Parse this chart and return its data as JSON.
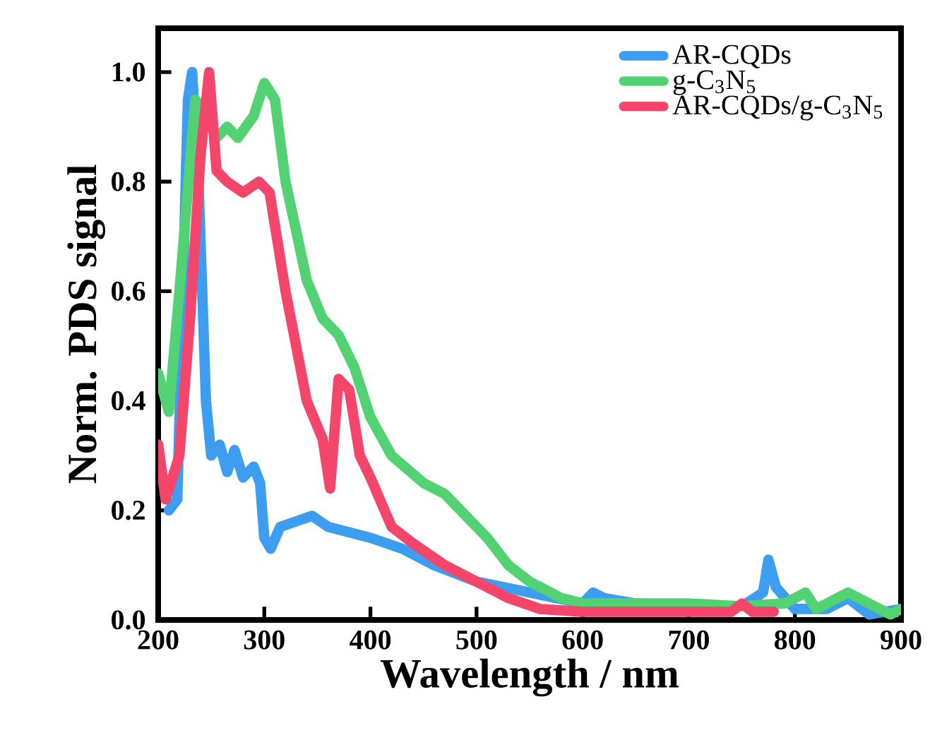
{
  "chart_data": {
    "type": "line",
    "xlabel": "Wavelength / nm",
    "ylabel": "Norm. PDS signal",
    "xlim": [
      200,
      900
    ],
    "ylim": [
      0,
      1.08
    ],
    "xticks": [
      200,
      300,
      400,
      500,
      600,
      700,
      800,
      900
    ],
    "yticks": [
      {
        "value": 0,
        "label": "0.0"
      },
      {
        "value": 0.2,
        "label": "0.2"
      },
      {
        "value": 0.4,
        "label": "0.4"
      },
      {
        "value": 0.6,
        "label": "0.6"
      },
      {
        "value": 0.8,
        "label": "0.8"
      },
      {
        "value": 1.0,
        "label": "1.0"
      }
    ],
    "legend": "top right",
    "grid": false,
    "marker": "none",
    "line_style": "solid",
    "series": [
      {
        "name": "AR-CQDs",
        "color": "#3d9df0",
        "x": [
          210,
          218,
          228,
          232,
          238,
          245,
          250,
          258,
          265,
          272,
          280,
          290,
          296,
          300,
          306,
          315,
          330,
          345,
          360,
          380,
          400,
          430,
          460,
          500,
          550,
          600,
          610,
          620,
          650,
          700,
          750,
          770,
          775,
          782,
          800,
          830,
          850,
          870,
          900
        ],
        "values": [
          0.2,
          0.22,
          0.95,
          1.0,
          0.8,
          0.4,
          0.3,
          0.32,
          0.27,
          0.31,
          0.26,
          0.28,
          0.25,
          0.15,
          0.13,
          0.17,
          0.18,
          0.19,
          0.17,
          0.16,
          0.15,
          0.13,
          0.1,
          0.07,
          0.05,
          0.03,
          0.05,
          0.04,
          0.03,
          0.025,
          0.025,
          0.05,
          0.11,
          0.06,
          0.02,
          0.02,
          0.04,
          0.01,
          0.02
        ]
      },
      {
        "name": "g-C$_{3}$N$_{5}$",
        "color": "#52d273",
        "x": [
          200,
          210,
          220,
          235,
          245,
          255,
          265,
          275,
          290,
          300,
          310,
          320,
          340,
          355,
          370,
          385,
          400,
          420,
          450,
          470,
          490,
          510,
          530,
          550,
          580,
          600,
          650,
          700,
          750,
          790,
          810,
          820,
          850,
          870,
          890,
          900
        ],
        "values": [
          0.45,
          0.38,
          0.6,
          0.95,
          0.92,
          0.88,
          0.9,
          0.88,
          0.92,
          0.98,
          0.95,
          0.8,
          0.62,
          0.55,
          0.52,
          0.46,
          0.37,
          0.3,
          0.25,
          0.23,
          0.19,
          0.15,
          0.1,
          0.07,
          0.04,
          0.03,
          0.03,
          0.03,
          0.025,
          0.03,
          0.05,
          0.02,
          0.05,
          0.03,
          0.01,
          0.02
        ]
      },
      {
        "name": "AR-CQDs/g-C$_{3}$N$_{5}$",
        "color": "#f4466a",
        "x": [
          200,
          207,
          220,
          230,
          240,
          248,
          255,
          265,
          280,
          295,
          305,
          320,
          340,
          355,
          362,
          370,
          380,
          390,
          400,
          420,
          440,
          470,
          500,
          530,
          560,
          600,
          650,
          700,
          740,
          750,
          760,
          780
        ],
        "values": [
          0.32,
          0.22,
          0.3,
          0.55,
          0.85,
          1.0,
          0.82,
          0.8,
          0.78,
          0.8,
          0.78,
          0.6,
          0.4,
          0.33,
          0.24,
          0.44,
          0.42,
          0.3,
          0.26,
          0.17,
          0.14,
          0.1,
          0.07,
          0.04,
          0.02,
          0.015,
          0.015,
          0.015,
          0.015,
          0.03,
          0.015,
          0.015
        ]
      }
    ]
  }
}
